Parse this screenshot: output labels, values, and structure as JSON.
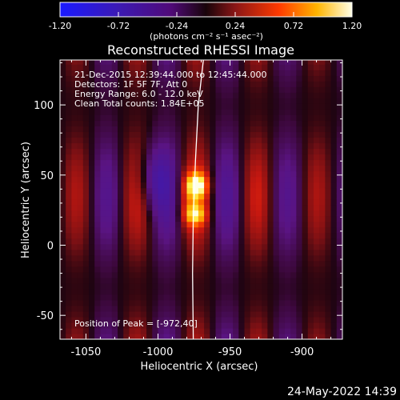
{
  "chart_data": {
    "type": "heatmap",
    "title": "Reconstructed RHESSI Image",
    "xlabel": "Heliocentric X (arcsec)",
    "ylabel": "Heliocentric Y (arcsec)",
    "xlim": [
      -1068,
      -872
    ],
    "ylim": [
      -67,
      132
    ],
    "x_ticks": [
      -1050,
      -1000,
      -950,
      -900
    ],
    "y_ticks": [
      -50,
      0,
      50,
      100
    ],
    "colorbar": {
      "min": -1.2,
      "max": 1.2,
      "ticks": [
        "-1.20",
        "-0.72",
        "-0.24",
        "0.24",
        "0.72",
        "1.20"
      ],
      "unit_label": "(photons cm⁻² s⁻¹ asec⁻²)"
    },
    "annotations": [
      "21-Dec-2015 12:39:44.000 to 12:45:44.000",
      "Detectors: 1F 5F 7F, Att 0",
      "Energy Range: 6.0 - 12.0 keV",
      "Clean    Total counts: 1.84E+05"
    ],
    "peak_label": "Position of Peak = [-972,40]",
    "peak": {
      "x": -972,
      "y": 40,
      "value": 1.2
    },
    "limb": [
      {
        "x": -968.5,
        "y": 132
      },
      {
        "x": -972,
        "y": 100
      },
      {
        "x": -974,
        "y": 60
      },
      {
        "x": -975.5,
        "y": 20
      },
      {
        "x": -976,
        "y": -20
      },
      {
        "x": -975.5,
        "y": -67
      }
    ],
    "grid": false,
    "pixel_size_arcsec": 4,
    "components": [
      {
        "x": -973,
        "y": 43,
        "sx": 5,
        "sy": 6,
        "amp": 0.95
      },
      {
        "x": -974,
        "y": 22,
        "sx": 5,
        "sy": 5,
        "amp": 0.65
      },
      {
        "x": -978,
        "y": 32,
        "sx": 6,
        "sy": 14,
        "amp": 0.25
      }
    ]
  },
  "footer": {
    "timestamp": "24-May-2022 14:39"
  }
}
